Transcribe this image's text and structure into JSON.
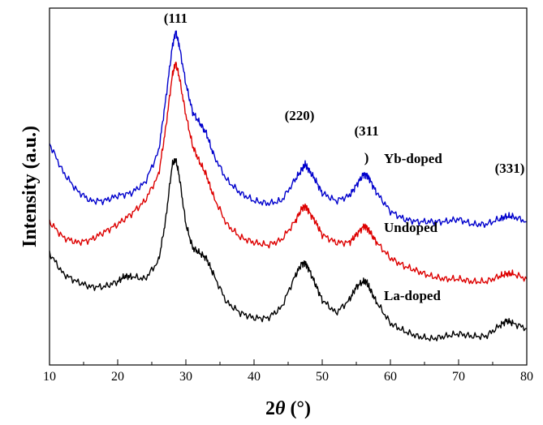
{
  "chart_data": {
    "type": "line",
    "xlabel_prefix": "2",
    "xlabel_var": "θ",
    "xlabel_suffix": " (°)",
    "ylabel": "Intensity (a.u.)",
    "xlim": [
      10,
      80
    ],
    "xticks": [
      "10",
      "20",
      "30",
      "40",
      "50",
      "60",
      "70",
      "80"
    ],
    "y_ticks_shown": false,
    "grid": false,
    "annotations": [
      {
        "text": "(111",
        "x": 28.5
      },
      {
        "text": "(220)",
        "x": 47.5
      },
      {
        "text": "(311",
        "x": 56.5
      },
      {
        "text": ")",
        "x": 56.5
      },
      {
        "text": "(331)",
        "x": 77.5
      }
    ],
    "series": [
      {
        "name": "Yb-doped",
        "color": "#0000cc",
        "x": [
          10,
          12,
          14,
          16,
          18,
          20,
          22,
          24,
          26,
          27,
          28,
          28.5,
          29,
          30,
          31,
          32,
          33,
          34,
          36,
          38,
          40,
          42,
          44,
          46,
          47,
          47.5,
          48,
          49,
          50,
          52,
          54,
          55,
          56,
          56.5,
          57,
          58,
          60,
          62,
          64,
          66,
          68,
          70,
          72,
          74,
          76,
          77,
          78,
          80
        ],
        "values": [
          7.0,
          5.9,
          5.2,
          4.8,
          4.8,
          5.0,
          5.1,
          5.5,
          6.7,
          8.6,
          10.7,
          11.3,
          10.8,
          9.3,
          8.2,
          7.8,
          7.4,
          6.6,
          5.6,
          5.1,
          4.8,
          4.7,
          4.8,
          5.6,
          6.0,
          6.2,
          6.0,
          5.6,
          5.1,
          4.8,
          5.0,
          5.4,
          5.8,
          5.8,
          5.6,
          5.1,
          4.4,
          4.1,
          4.0,
          4.0,
          4.0,
          4.1,
          3.9,
          3.9,
          4.1,
          4.2,
          4.2,
          4.0
        ]
      },
      {
        "name": "Undoped",
        "color": "#dd0000",
        "x": [
          10,
          12,
          14,
          16,
          18,
          20,
          22,
          24,
          26,
          27,
          28,
          28.5,
          29,
          30,
          31,
          32,
          33,
          34,
          36,
          38,
          40,
          42,
          44,
          46,
          47,
          47.5,
          48,
          49,
          50,
          52,
          54,
          55,
          56,
          56.5,
          57,
          58,
          60,
          62,
          64,
          66,
          68,
          70,
          72,
          74,
          76,
          77,
          78,
          80
        ],
        "values": [
          4.0,
          3.4,
          3.2,
          3.3,
          3.6,
          3.9,
          4.3,
          4.8,
          5.8,
          7.5,
          9.6,
          10.1,
          9.6,
          8.1,
          6.9,
          6.3,
          5.8,
          5.0,
          3.9,
          3.4,
          3.2,
          3.1,
          3.3,
          4.0,
          4.5,
          4.6,
          4.4,
          4.0,
          3.5,
          3.2,
          3.2,
          3.5,
          3.8,
          3.8,
          3.6,
          3.2,
          2.6,
          2.3,
          2.1,
          1.9,
          1.8,
          1.8,
          1.7,
          1.7,
          1.9,
          2.0,
          2.0,
          1.8
        ]
      },
      {
        "name": "La-doped",
        "color": "#000000",
        "x": [
          10,
          12,
          14,
          16,
          18,
          20,
          21,
          22,
          24,
          26,
          27,
          28,
          28.5,
          29,
          30,
          31,
          32,
          33,
          34,
          36,
          38,
          40,
          42,
          44,
          46,
          47,
          47.5,
          48,
          49,
          50,
          52,
          54,
          55,
          56,
          56.5,
          57,
          58,
          60,
          62,
          64,
          66,
          68,
          70,
          72,
          74,
          76,
          77,
          78,
          80
        ],
        "values": [
          2.8,
          2.0,
          1.7,
          1.5,
          1.5,
          1.7,
          1.9,
          1.9,
          1.8,
          2.5,
          4.0,
          6.2,
          6.4,
          5.8,
          3.9,
          3.0,
          2.8,
          2.6,
          2.0,
          0.9,
          0.5,
          0.3,
          0.3,
          0.7,
          1.9,
          2.4,
          2.4,
          2.2,
          1.6,
          1.0,
          0.5,
          1.0,
          1.5,
          1.7,
          1.7,
          1.4,
          0.9,
          0.1,
          -0.2,
          -0.4,
          -0.5,
          -0.4,
          -0.3,
          -0.4,
          -0.4,
          0.0,
          0.2,
          0.1,
          -0.1
        ]
      }
    ]
  }
}
